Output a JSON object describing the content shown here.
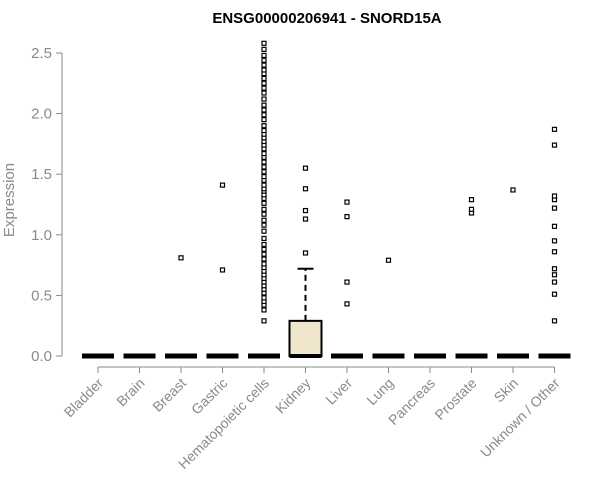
{
  "chart_data": {
    "type": "boxplot",
    "title": "ENSG00000206941 - SNORD15A",
    "ylabel": "Expression",
    "xlabel": "",
    "ylim": [
      0,
      2.5
    ],
    "yticks": [
      "0.0",
      "0.5",
      "1.0",
      "1.5",
      "2.0",
      "2.5"
    ],
    "box_fill": "#efe6cc",
    "categories": [
      "Bladder",
      "Brain",
      "Breast",
      "Gastric",
      "Hematopoietic cells",
      "Kidney",
      "Liver",
      "Lung",
      "Pancreas",
      "Prostate",
      "Skin",
      "Unknown / Other"
    ],
    "boxes": [
      {
        "category": "Bladder",
        "q1": 0,
        "median": 0,
        "q3": 0,
        "whisker_low": 0,
        "whisker_high": 0,
        "outliers": []
      },
      {
        "category": "Brain",
        "q1": 0,
        "median": 0,
        "q3": 0,
        "whisker_low": 0,
        "whisker_high": 0,
        "outliers": []
      },
      {
        "category": "Breast",
        "q1": 0,
        "median": 0,
        "q3": 0,
        "whisker_low": 0,
        "whisker_high": 0,
        "outliers": [
          0.81
        ]
      },
      {
        "category": "Gastric",
        "q1": 0,
        "median": 0,
        "q3": 0,
        "whisker_low": 0,
        "whisker_high": 0,
        "outliers": [
          0.71,
          1.41
        ]
      },
      {
        "category": "Hematopoietic cells",
        "q1": 0,
        "median": 0,
        "q3": 0,
        "whisker_low": 0,
        "whisker_high": 0,
        "outliers": [
          0.29,
          0.38,
          0.42,
          0.45,
          0.48,
          0.52,
          0.55,
          0.58,
          0.61,
          0.64,
          0.67,
          0.7,
          0.73,
          0.76,
          0.8,
          0.84,
          0.88,
          0.92,
          0.97,
          1.03,
          1.08,
          1.12,
          1.17,
          1.21,
          1.26,
          1.3,
          1.33,
          1.36,
          1.38,
          1.41,
          1.45,
          1.48,
          1.52,
          1.56,
          1.6,
          1.64,
          1.67,
          1.71,
          1.74,
          1.77,
          1.8,
          1.83,
          1.86,
          1.9,
          1.95,
          1.99,
          2.03,
          2.07,
          2.12,
          2.17,
          2.21,
          2.25,
          2.29,
          2.33,
          2.36,
          2.4,
          2.44,
          2.48,
          2.53,
          2.58
        ]
      },
      {
        "category": "Kidney",
        "q1": 0,
        "median": 0,
        "q3": 0.29,
        "whisker_low": 0,
        "whisker_high": 0.72,
        "outliers": [
          0.85,
          1.13,
          1.2,
          1.38,
          1.55
        ]
      },
      {
        "category": "Liver",
        "q1": 0,
        "median": 0,
        "q3": 0,
        "whisker_low": 0,
        "whisker_high": 0,
        "outliers": [
          0.43,
          0.61,
          1.15,
          1.27
        ]
      },
      {
        "category": "Lung",
        "q1": 0,
        "median": 0,
        "q3": 0,
        "whisker_low": 0,
        "whisker_high": 0,
        "outliers": [
          0.79
        ]
      },
      {
        "category": "Pancreas",
        "q1": 0,
        "median": 0,
        "q3": 0,
        "whisker_low": 0,
        "whisker_high": 0,
        "outliers": []
      },
      {
        "category": "Prostate",
        "q1": 0,
        "median": 0,
        "q3": 0,
        "whisker_low": 0,
        "whisker_high": 0,
        "outliers": [
          1.18,
          1.21,
          1.29
        ]
      },
      {
        "category": "Skin",
        "q1": 0,
        "median": 0,
        "q3": 0,
        "whisker_low": 0,
        "whisker_high": 0,
        "outliers": [
          1.37
        ]
      },
      {
        "category": "Unknown / Other",
        "q1": 0,
        "median": 0,
        "q3": 0,
        "whisker_low": 0,
        "whisker_high": 0,
        "outliers": [
          0.29,
          0.51,
          0.61,
          0.67,
          0.72,
          0.86,
          0.95,
          1.07,
          1.22,
          1.29,
          1.32,
          1.74,
          1.87
        ]
      }
    ]
  }
}
